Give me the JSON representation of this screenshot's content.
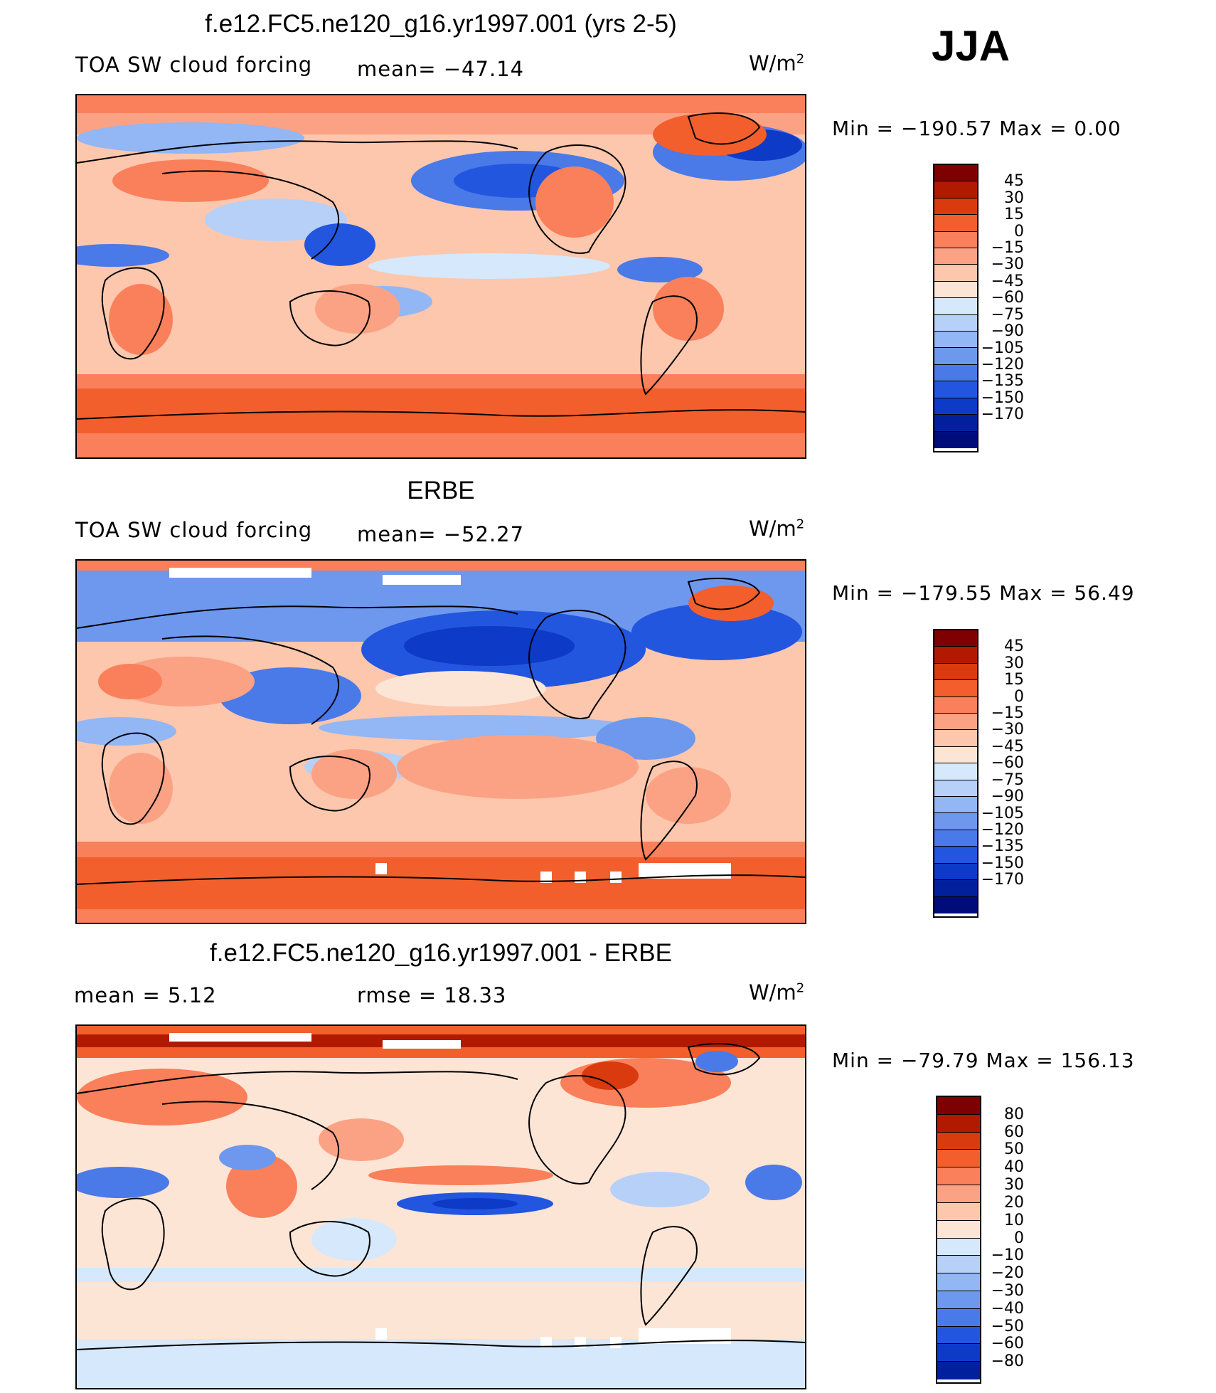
{
  "season": "JJA",
  "panels": [
    {
      "title": "f.e12.FC5.ne120_g16.yr1997.001 (yrs 2-5)",
      "left_label": "TOA SW cloud forcing",
      "mid_label": "mean= −47.14",
      "units": "W/m",
      "units_sup": "2",
      "minmax": "Min  =  −190.57  Max  =     0.00",
      "colorbar_colors": [
        "#7f0000",
        "#b11a00",
        "#d93a0e",
        "#f25f2c",
        "#f9805a",
        "#fba285",
        "#fcc7ad",
        "#fde5d6",
        "#d6e8fb",
        "#b6d0f8",
        "#93b6f4",
        "#6e98ee",
        "#4a79e8",
        "#2356de",
        "#0d3ac6",
        "#02209c",
        "#000c7a"
      ],
      "colorbar_labels": [
        "45",
        "30",
        "15",
        "0",
        "−15",
        "−30",
        "−45",
        "−60",
        "−75",
        "−90",
        "−105",
        "−120",
        "−135",
        "−150",
        "−170"
      ]
    },
    {
      "title": "ERBE",
      "left_label": "TOA SW cloud forcing",
      "mid_label": "mean= −52.27",
      "units": "W/m",
      "units_sup": "2",
      "minmax": "Min  =  −179.55  Max  =   56.49",
      "colorbar_colors": [
        "#7f0000",
        "#b11a00",
        "#d93a0e",
        "#f25f2c",
        "#f9805a",
        "#fba285",
        "#fcc7ad",
        "#fde5d6",
        "#d6e8fb",
        "#b6d0f8",
        "#93b6f4",
        "#6e98ee",
        "#4a79e8",
        "#2356de",
        "#0d3ac6",
        "#02209c",
        "#000c7a"
      ],
      "colorbar_labels": [
        "45",
        "30",
        "15",
        "0",
        "−15",
        "−30",
        "−45",
        "−60",
        "−75",
        "−90",
        "−105",
        "−120",
        "−135",
        "−150",
        "−170"
      ]
    },
    {
      "title": "f.e12.FC5.ne120_g16.yr1997.001 - ERBE",
      "left_label": "mean  =     5.12",
      "mid_label": "rmse  =    18.33",
      "units": "W/m",
      "units_sup": "2",
      "minmax": "Min  =  −79.79  Max  =  156.13",
      "colorbar_colors": [
        "#7f0000",
        "#b11a00",
        "#d93a0e",
        "#f25f2c",
        "#f9805a",
        "#fba285",
        "#fcc7ad",
        "#fde5d6",
        "#d6e8fb",
        "#b6d0f8",
        "#93b6f4",
        "#6e98ee",
        "#4a79e8",
        "#2356de",
        "#0d3ac6",
        "#02209c"
      ],
      "colorbar_labels": [
        "80",
        "60",
        "50",
        "40",
        "30",
        "20",
        "10",
        "0",
        "−10",
        "−20",
        "−30",
        "−40",
        "−50",
        "−60",
        "−80"
      ]
    }
  ]
}
